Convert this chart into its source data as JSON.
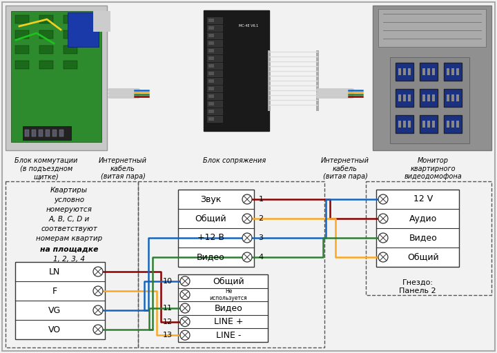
{
  "bg": "#f2f2f2",
  "wire_blue": "#1565C0",
  "wire_yellow": "#F9A825",
  "wire_green": "#2E7D32",
  "wire_red": "#8B0000",
  "wire_brown": "#6D4C41",
  "label_left1": "Блок коммутации\n(в подъездном\nщитке)",
  "label_cable1": "Интернетный\nкабель\n(витая пара)",
  "label_center": "Блок сопряжения",
  "label_cable2": "Интернетный\nкабель\n(витая пара)",
  "label_right": "Монитор\nквартирного\nвидеодомофона",
  "note_line1": "Квартиры",
  "note_line2": "условно",
  "note_line3": "номеруются",
  "note_line4": "A, B, C, D и",
  "note_line5": "соответствуют",
  "note_line6": "номерам квартир",
  "note_bold": "на площадке",
  "note_nums": "1, 2, 3, 4",
  "left_rows": [
    "LN",
    "F",
    "VG",
    "VO"
  ],
  "ct_rows": [
    [
      "Звук",
      "1"
    ],
    [
      "Общий",
      "2"
    ],
    [
      "+12 В",
      "3"
    ],
    [
      "Видео",
      "4"
    ]
  ],
  "cb_rows": [
    [
      "10",
      "Общий"
    ],
    [
      "",
      "Не\nиспользуется"
    ],
    [
      "11",
      "Видео"
    ],
    [
      "12",
      "LINE +"
    ],
    [
      "13",
      "LINE -"
    ]
  ],
  "rb_rows": [
    "12 V",
    "Аудио",
    "Видео",
    "Общий"
  ],
  "rb_note": "Гнездо:\nПанель 2"
}
